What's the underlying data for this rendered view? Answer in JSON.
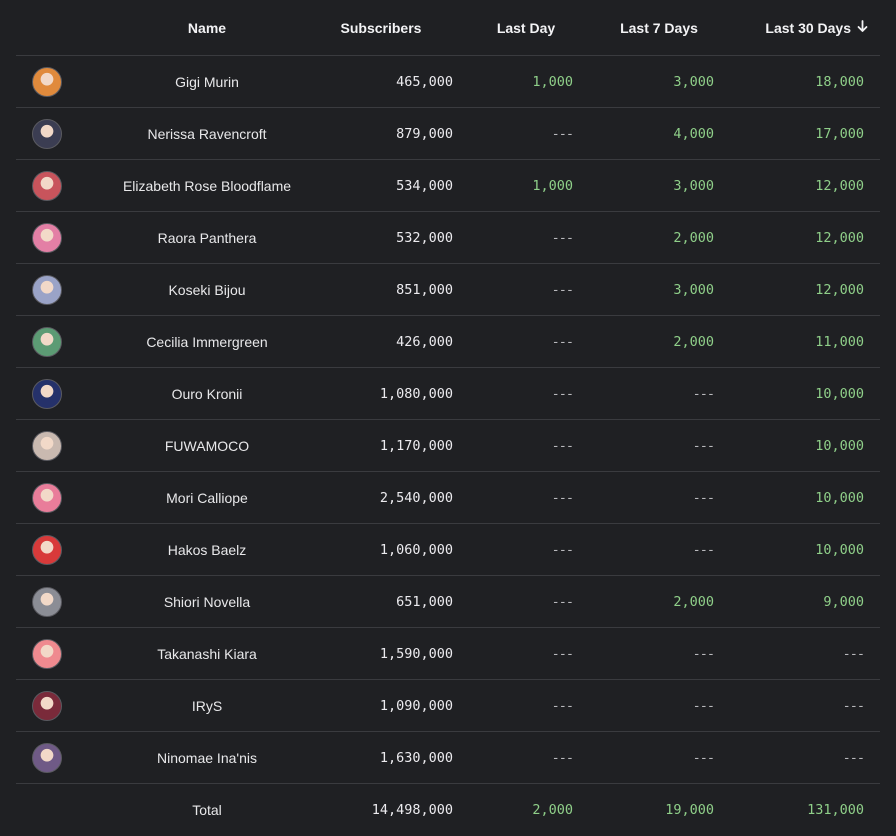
{
  "header": {
    "name": "Name",
    "subscribers": "Subscribers",
    "last_day": "Last Day",
    "last_7": "Last 7 Days",
    "last_30": "Last 30 Days",
    "sort_icon": "arrow-down-icon"
  },
  "rows": [
    {
      "name": "Gigi Murin",
      "subs": "465,000",
      "day": "1,000",
      "week": "3,000",
      "month": "18,000",
      "avatar_color": "#e08a3c"
    },
    {
      "name": "Nerissa Ravencroft",
      "subs": "879,000",
      "day": "---",
      "week": "4,000",
      "month": "17,000",
      "avatar_color": "#3b3d52"
    },
    {
      "name": "Elizabeth Rose Bloodflame",
      "subs": "534,000",
      "day": "1,000",
      "week": "3,000",
      "month": "12,000",
      "avatar_color": "#c8545c"
    },
    {
      "name": "Raora Panthera",
      "subs": "532,000",
      "day": "---",
      "week": "2,000",
      "month": "12,000",
      "avatar_color": "#e37fa5"
    },
    {
      "name": "Koseki Bijou",
      "subs": "851,000",
      "day": "---",
      "week": "3,000",
      "month": "12,000",
      "avatar_color": "#9aa3c7"
    },
    {
      "name": "Cecilia Immergreen",
      "subs": "426,000",
      "day": "---",
      "week": "2,000",
      "month": "11,000",
      "avatar_color": "#5c9b74"
    },
    {
      "name": "Ouro Kronii",
      "subs": "1,080,000",
      "day": "---",
      "week": "---",
      "month": "10,000",
      "avatar_color": "#25316a"
    },
    {
      "name": "FUWAMOCO",
      "subs": "1,170,000",
      "day": "---",
      "week": "---",
      "month": "10,000",
      "avatar_color": "#c9b9b0"
    },
    {
      "name": "Mori Calliope",
      "subs": "2,540,000",
      "day": "---",
      "week": "---",
      "month": "10,000",
      "avatar_color": "#e97d9a"
    },
    {
      "name": "Hakos Baelz",
      "subs": "1,060,000",
      "day": "---",
      "week": "---",
      "month": "10,000",
      "avatar_color": "#d83a3a"
    },
    {
      "name": "Shiori Novella",
      "subs": "651,000",
      "day": "---",
      "week": "2,000",
      "month": "9,000",
      "avatar_color": "#8b8d95"
    },
    {
      "name": "Takanashi Kiara",
      "subs": "1,590,000",
      "day": "---",
      "week": "---",
      "month": "---",
      "avatar_color": "#ef8a8f"
    },
    {
      "name": "IRyS",
      "subs": "1,090,000",
      "day": "---",
      "week": "---",
      "month": "---",
      "avatar_color": "#7a2a3a"
    },
    {
      "name": "Ninomae Ina'nis",
      "subs": "1,630,000",
      "day": "---",
      "week": "---",
      "month": "---",
      "avatar_color": "#6f5a86"
    }
  ],
  "total": {
    "label": "Total",
    "subs": "14,498,000",
    "day": "2,000",
    "week": "19,000",
    "month": "131,000"
  }
}
